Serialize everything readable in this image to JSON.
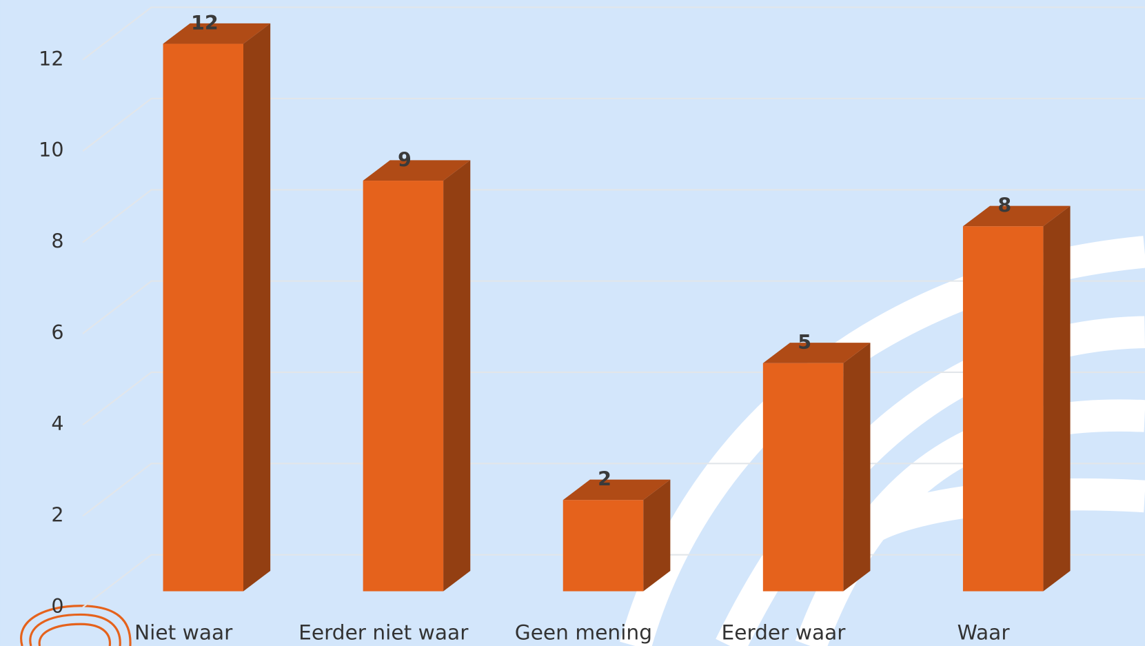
{
  "chart_data": {
    "type": "bar3d",
    "categories": [
      "Niet waar",
      "Eerder niet waar",
      "Geen mening",
      "Eerder waar",
      "Waar"
    ],
    "values": [
      12,
      9,
      2,
      5,
      8
    ],
    "color": "#e5621c",
    "ylim": [
      0,
      12
    ],
    "yticks": [
      0,
      2,
      4,
      6,
      8,
      10,
      12
    ],
    "grid": true
  }
}
